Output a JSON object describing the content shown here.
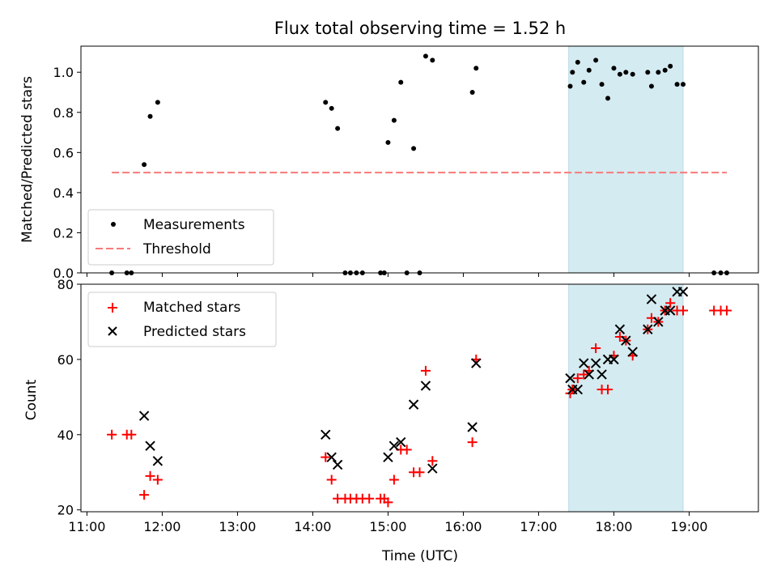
{
  "title": "Flux total observing time = 1.52 h",
  "highlight": {
    "x_start": 17.4,
    "x_end": 18.92,
    "color": "#d4ebf1"
  },
  "top": {
    "ylabel": "Matched/Predicted stars",
    "ylim": [
      0,
      1.13
    ],
    "yticks": [
      0.0,
      0.2,
      0.4,
      0.6,
      0.8,
      1.0
    ],
    "ytick_labels": [
      "0.0",
      "0.2",
      "0.4",
      "0.6",
      "0.8",
      "1.0"
    ],
    "threshold": {
      "y": 0.5,
      "x_start": 11.33,
      "x_end": 19.5,
      "color": "#f77a7a"
    },
    "measurements": [
      [
        11.33,
        0.0
      ],
      [
        11.53,
        0.0
      ],
      [
        11.59,
        0.0
      ],
      [
        11.76,
        0.54
      ],
      [
        11.84,
        0.78
      ],
      [
        11.94,
        0.85
      ],
      [
        14.17,
        0.85
      ],
      [
        14.25,
        0.82
      ],
      [
        14.33,
        0.72
      ],
      [
        14.43,
        0.0
      ],
      [
        14.5,
        0.0
      ],
      [
        14.58,
        0.0
      ],
      [
        14.66,
        0.0
      ],
      [
        14.9,
        0.0
      ],
      [
        14.95,
        0.0
      ],
      [
        15.0,
        0.65
      ],
      [
        15.08,
        0.76
      ],
      [
        15.17,
        0.95
      ],
      [
        15.25,
        0.0
      ],
      [
        15.34,
        0.62
      ],
      [
        15.42,
        0.0
      ],
      [
        15.5,
        1.08
      ],
      [
        15.59,
        1.06
      ],
      [
        16.12,
        0.9
      ],
      [
        16.17,
        1.02
      ],
      [
        17.42,
        0.93
      ],
      [
        17.45,
        1.0
      ],
      [
        17.52,
        1.05
      ],
      [
        17.6,
        0.95
      ],
      [
        17.67,
        1.01
      ],
      [
        17.76,
        1.06
      ],
      [
        17.84,
        0.94
      ],
      [
        17.92,
        0.87
      ],
      [
        18.0,
        1.02
      ],
      [
        18.08,
        0.99
      ],
      [
        18.16,
        1.0
      ],
      [
        18.25,
        0.99
      ],
      [
        18.45,
        1.0
      ],
      [
        18.5,
        0.93
      ],
      [
        18.59,
        1.0
      ],
      [
        18.68,
        1.01
      ],
      [
        18.75,
        1.03
      ],
      [
        18.84,
        0.94
      ],
      [
        18.92,
        0.94
      ],
      [
        19.33,
        0.0
      ],
      [
        19.42,
        0.0
      ],
      [
        19.5,
        0.0
      ]
    ]
  },
  "bottom": {
    "ylabel": "Count",
    "xlabel": "Time (UTC)",
    "ylim": [
      19.5,
      80
    ],
    "yticks": [
      20,
      40,
      60,
      80
    ],
    "ytick_labels": [
      "20",
      "40",
      "60",
      "80"
    ],
    "xlim": [
      10.92,
      19.92
    ],
    "xticks": [
      11,
      12,
      13,
      14,
      15,
      16,
      17,
      18,
      19
    ],
    "xtick_labels": [
      "11:00",
      "12:00",
      "13:00",
      "14:00",
      "15:00",
      "16:00",
      "17:00",
      "18:00",
      "19:00"
    ],
    "matched": [
      [
        11.33,
        40
      ],
      [
        11.53,
        40
      ],
      [
        11.59,
        40
      ],
      [
        11.76,
        24
      ],
      [
        11.84,
        29
      ],
      [
        11.94,
        28
      ],
      [
        14.17,
        34
      ],
      [
        14.25,
        28
      ],
      [
        14.33,
        23
      ],
      [
        14.43,
        23
      ],
      [
        14.5,
        23
      ],
      [
        14.58,
        23
      ],
      [
        14.66,
        23
      ],
      [
        14.75,
        23
      ],
      [
        14.9,
        23
      ],
      [
        14.95,
        23
      ],
      [
        15.0,
        22
      ],
      [
        15.08,
        28
      ],
      [
        15.17,
        36
      ],
      [
        15.25,
        36
      ],
      [
        15.34,
        30
      ],
      [
        15.42,
        30
      ],
      [
        15.5,
        57
      ],
      [
        15.59,
        33
      ],
      [
        16.12,
        38
      ],
      [
        16.17,
        60
      ],
      [
        17.42,
        51
      ],
      [
        17.45,
        52
      ],
      [
        17.52,
        55
      ],
      [
        17.6,
        56
      ],
      [
        17.67,
        57
      ],
      [
        17.76,
        63
      ],
      [
        17.84,
        52
      ],
      [
        17.92,
        52
      ],
      [
        18.0,
        61
      ],
      [
        18.08,
        66
      ],
      [
        18.16,
        65
      ],
      [
        18.25,
        61
      ],
      [
        18.45,
        68
      ],
      [
        18.5,
        71
      ],
      [
        18.59,
        70
      ],
      [
        18.68,
        73
      ],
      [
        18.75,
        75
      ],
      [
        18.84,
        73
      ],
      [
        18.92,
        73
      ],
      [
        19.33,
        73
      ],
      [
        19.42,
        73
      ],
      [
        19.5,
        73
      ]
    ],
    "predicted": [
      [
        11.76,
        45
      ],
      [
        11.84,
        37
      ],
      [
        11.94,
        33
      ],
      [
        14.17,
        40
      ],
      [
        14.25,
        34
      ],
      [
        14.33,
        32
      ],
      [
        15.0,
        34
      ],
      [
        15.08,
        37
      ],
      [
        15.17,
        38
      ],
      [
        15.34,
        48
      ],
      [
        15.5,
        53
      ],
      [
        15.59,
        31
      ],
      [
        16.12,
        42
      ],
      [
        16.17,
        59
      ],
      [
        17.42,
        55
      ],
      [
        17.45,
        52
      ],
      [
        17.52,
        52
      ],
      [
        17.6,
        59
      ],
      [
        17.67,
        56
      ],
      [
        17.76,
        59
      ],
      [
        17.84,
        56
      ],
      [
        17.92,
        60
      ],
      [
        18.0,
        60
      ],
      [
        18.08,
        68
      ],
      [
        18.16,
        65
      ],
      [
        18.25,
        62
      ],
      [
        18.45,
        68
      ],
      [
        18.5,
        76
      ],
      [
        18.59,
        70
      ],
      [
        18.68,
        73
      ],
      [
        18.75,
        73
      ],
      [
        18.84,
        78
      ],
      [
        18.92,
        78
      ]
    ]
  },
  "legend_top": {
    "measurements": "Measurements",
    "threshold": "Threshold"
  },
  "legend_bottom": {
    "matched": "Matched stars",
    "predicted": "Predicted stars"
  },
  "colors": {
    "matched": "#ff0000",
    "predicted": "#000000",
    "measurements": "#000000"
  }
}
